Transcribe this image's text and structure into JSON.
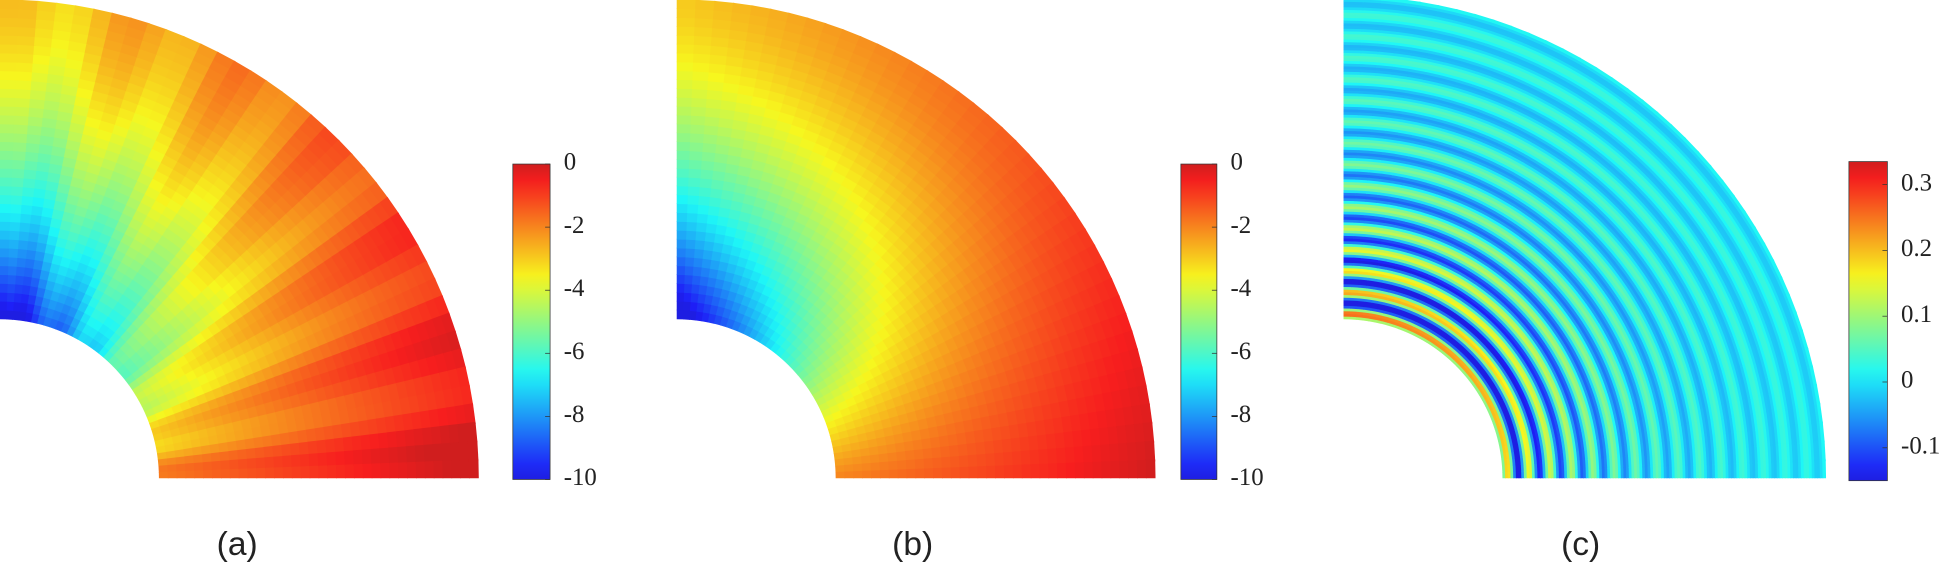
{
  "panels": [
    {
      "label": "(a)",
      "colorbar": {
        "clim": [
          -10,
          0
        ],
        "ticks": [
          0,
          -2,
          -4,
          -6,
          -8,
          -10
        ]
      }
    },
    {
      "label": "(b)",
      "colorbar": {
        "clim": [
          -10,
          0
        ],
        "ticks": [
          0,
          -2,
          -4,
          -6,
          -8,
          -10
        ]
      }
    },
    {
      "label": "(c)",
      "colorbar": {
        "clim": [
          -0.15,
          0.335
        ],
        "ticks": [
          0.3,
          0.2,
          0.1,
          0,
          -0.1
        ]
      }
    }
  ]
}
